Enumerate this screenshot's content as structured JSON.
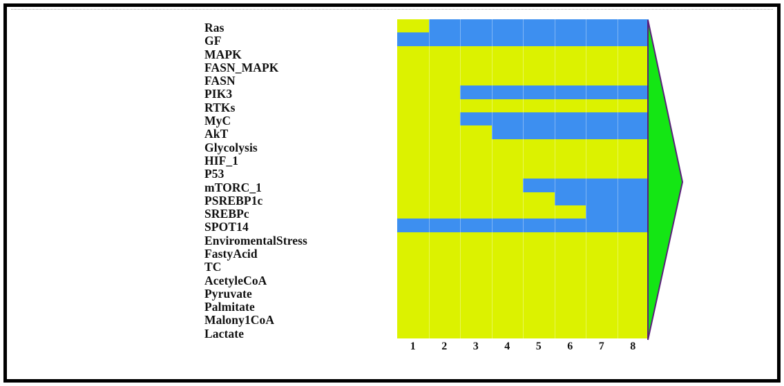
{
  "colors": {
    "inactive": "#dcf200",
    "active": "#3d8ff0",
    "arrow_fill": "#14e614",
    "arrow_edge": "#5a1f7a"
  },
  "rows": [
    {
      "label": "Ras",
      "states": [
        0,
        1,
        1,
        1,
        1,
        1,
        1,
        1
      ]
    },
    {
      "label": "GF",
      "states": [
        1,
        1,
        1,
        1,
        1,
        1,
        1,
        1
      ]
    },
    {
      "label": "MAPK",
      "states": [
        0,
        0,
        0,
        0,
        0,
        0,
        0,
        0
      ]
    },
    {
      "label": "FASN_MAPK",
      "states": [
        0,
        0,
        0,
        0,
        0,
        0,
        0,
        0
      ]
    },
    {
      "label": "FASN",
      "states": [
        0,
        0,
        0,
        0,
        0,
        0,
        0,
        0
      ]
    },
    {
      "label": "PIK3",
      "states": [
        0,
        0,
        1,
        1,
        1,
        1,
        1,
        1
      ]
    },
    {
      "label": "RTKs",
      "states": [
        0,
        0,
        0,
        0,
        0,
        0,
        0,
        0
      ]
    },
    {
      "label": "MyC",
      "states": [
        0,
        0,
        1,
        1,
        1,
        1,
        1,
        1
      ]
    },
    {
      "label": "AkT",
      "states": [
        0,
        0,
        0,
        1,
        1,
        1,
        1,
        1
      ]
    },
    {
      "label": "Glycolysis",
      "states": [
        0,
        0,
        0,
        0,
        0,
        0,
        0,
        0
      ]
    },
    {
      "label": "HIF_1",
      "states": [
        0,
        0,
        0,
        0,
        0,
        0,
        0,
        0
      ]
    },
    {
      "label": "P53",
      "states": [
        0,
        0,
        0,
        0,
        0,
        0,
        0,
        0
      ]
    },
    {
      "label": "mTORC_1",
      "states": [
        0,
        0,
        0,
        0,
        1,
        1,
        1,
        1
      ]
    },
    {
      "label": "PSREBP1c",
      "states": [
        0,
        0,
        0,
        0,
        0,
        1,
        1,
        1
      ]
    },
    {
      "label": "SREBPc",
      "states": [
        0,
        0,
        0,
        0,
        0,
        0,
        1,
        1
      ]
    },
    {
      "label": "SPOT14",
      "states": [
        1,
        1,
        1,
        1,
        1,
        1,
        1,
        1
      ]
    },
    {
      "label": "EnviromentalStress",
      "states": [
        0,
        0,
        0,
        0,
        0,
        0,
        0,
        0
      ]
    },
    {
      "label": "FastyAcid",
      "states": [
        0,
        0,
        0,
        0,
        0,
        0,
        0,
        0
      ]
    },
    {
      "label": "TC",
      "states": [
        0,
        0,
        0,
        0,
        0,
        0,
        0,
        0
      ]
    },
    {
      "label": "AcetyleCoA",
      "states": [
        0,
        0,
        0,
        0,
        0,
        0,
        0,
        0
      ]
    },
    {
      "label": "Pyruvate",
      "states": [
        0,
        0,
        0,
        0,
        0,
        0,
        0,
        0
      ]
    },
    {
      "label": "Palmitate",
      "states": [
        0,
        0,
        0,
        0,
        0,
        0,
        0,
        0
      ]
    },
    {
      "label": "Malony1CoA",
      "states": [
        0,
        0,
        0,
        0,
        0,
        0,
        0,
        0
      ]
    },
    {
      "label": "Lactate",
      "states": [
        0,
        0,
        0,
        0,
        0,
        0,
        0,
        0
      ]
    }
  ],
  "columns": [
    "1",
    "2",
    "3",
    "4",
    "5",
    "6",
    "7",
    "8"
  ]
}
